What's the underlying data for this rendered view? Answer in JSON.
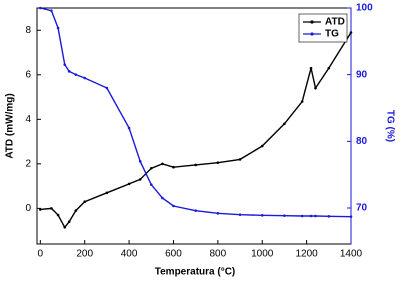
{
  "chart_data": {
    "type": "line",
    "x_label": "Temperatura (°C)",
    "y_label": "ATD (mW/mg)",
    "y2_label": "TG (%)",
    "x": [
      0,
      50,
      80,
      110,
      130,
      160,
      200,
      300,
      400,
      450,
      500,
      550,
      600,
      700,
      800,
      900,
      1000,
      1100,
      1180,
      1220,
      1240,
      1300,
      1400
    ],
    "series": [
      {
        "name": "ATD",
        "color": "#000000",
        "values": [
          -0.05,
          0,
          -0.3,
          -0.85,
          -0.6,
          -0.1,
          0.3,
          0.7,
          1.1,
          1.3,
          1.8,
          2.0,
          1.85,
          1.95,
          2.05,
          2.2,
          2.8,
          3.8,
          4.8,
          6.3,
          5.4,
          6.3,
          7.9
        ]
      },
      {
        "name": "TG",
        "color": "#1a1adc",
        "axis": "y2",
        "values": [
          100,
          99.6,
          97,
          91.5,
          90.5,
          90,
          89.5,
          88,
          82,
          77,
          73.5,
          71.5,
          70.3,
          69.6,
          69.2,
          69,
          68.9,
          68.85,
          68.8,
          68.8,
          68.8,
          68.75,
          68.7
        ]
      }
    ],
    "xlim": [
      -15,
      1400
    ],
    "xticks": [
      0,
      200,
      400,
      600,
      800,
      1000,
      1200,
      1400
    ],
    "ylim": [
      -1.6,
      9
    ],
    "yticks": [
      0,
      2,
      4,
      6,
      8
    ],
    "y2lim": [
      64.6,
      100
    ],
    "y2ticks": [
      70,
      80,
      90,
      100
    ],
    "legend": "upper-right"
  }
}
